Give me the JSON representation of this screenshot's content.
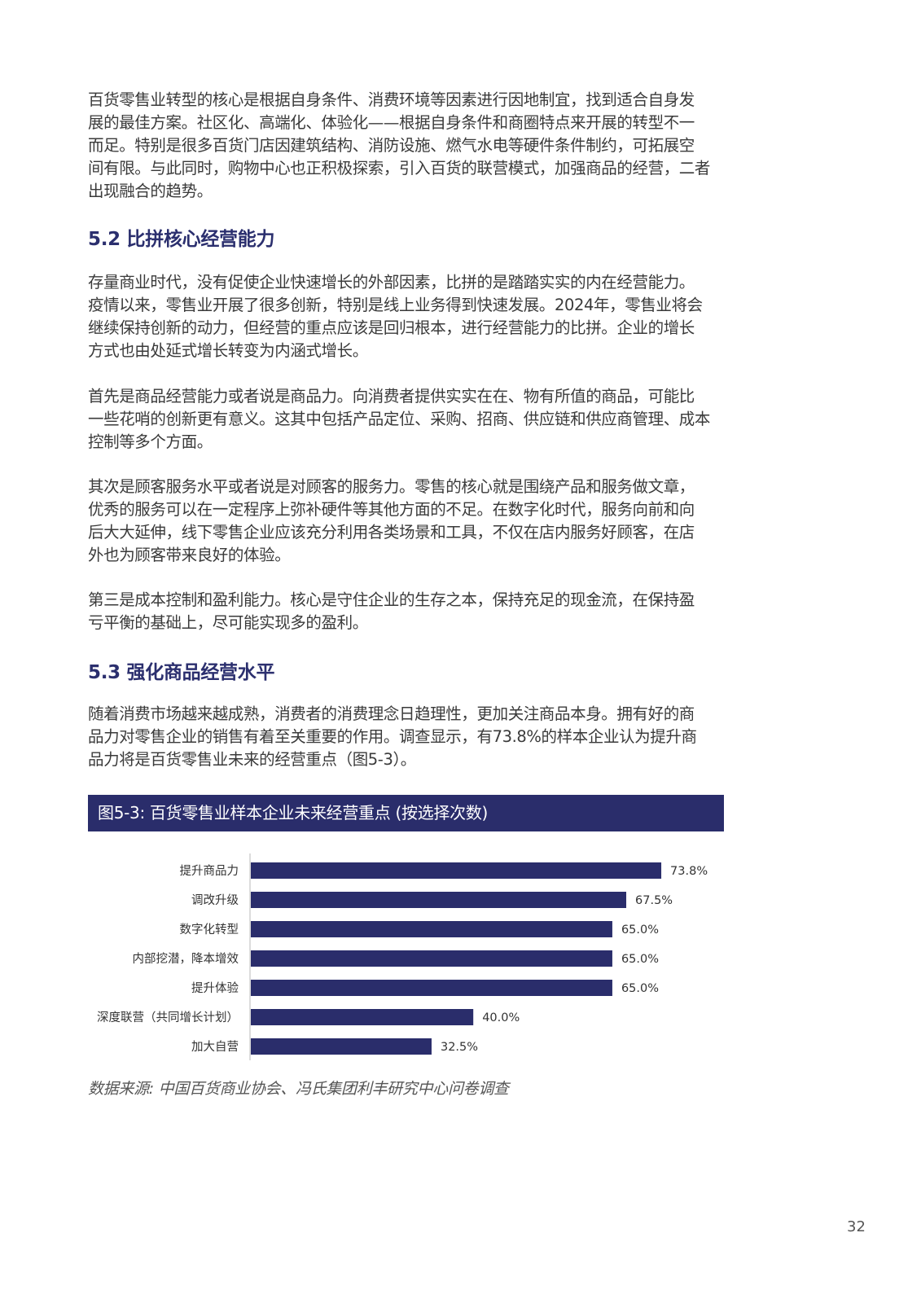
{
  "paragraphs": [
    [
      "百货零售业转型的核心是根据自身条件、消费环境等因素进行因地制宜，找到适合自身发",
      "展的最佳方案。社区化、高端化、体验化——根据自身条件和商圈特点来开展的转型不一",
      "而足。特别是很多百货门店因建筑结构、消防设施、燃气水电等硬件条件制约，可拓展空",
      "间有限。与此同时，购物中心也正积极探索，引入百货的联营模式，加强商品的经营，二者",
      "出现融合的趋势。"
    ],
    [
      "存量商业时代，没有促使企业快速增长的外部因素，比拼的是踏踏实实的内在经营能力。",
      "疫情以来，零售业开展了很多创新，特别是线上业务得到快速发展。2024年，零售业将会",
      "继续保持创新的动力，但经营的重点应该是回归根本，进行经营能力的比拼。企业的增长",
      "方式也由处延式增长转变为内涵式增长。"
    ],
    [
      "首先是商品经营能力或者说是商品力。向消费者提供实实在在、物有所值的商品，可能比",
      "一些花哨的创新更有意义。这其中包括产品定位、采购、招商、供应链和供应商管理、成本",
      "控制等多个方面。"
    ],
    [
      "其次是顾客服务水平或者说是对顾客的服务力。零售的核心就是围绕产品和服务做文章，",
      "优秀的服务可以在一定程序上弥补硬件等其他方面的不足。在数字化时代，服务向前和向",
      "后大大延伸，线下零售企业应该充分利用各类场景和工具，不仅在店内服务好顾客，在店",
      "外也为顾客带来良好的体验。"
    ],
    [
      "第三是成本控制和盈利能力。核心是守住企业的生存之本，保持充足的现金流，在保持盈",
      "亏平衡的基础上，尽可能实现多的盈利。"
    ],
    [
      "随着消费市场越来越成熟，消费者的消费理念日趋理性，更加关注商品本身。拥有好的商",
      "品力对零售企业的销售有着至关重要的作用。调查显示，有73.8%的样本企业认为提升商",
      "品力将是百货零售业未来的经营重点（图5-3）。"
    ]
  ],
  "headings": {
    "h52": "5.2 比拼核心经营能力",
    "h53": "5.3 强化商品经营水平"
  },
  "figure_title": "图5-3: 百货零售业样本企业未来经营重点 (按选择次数)",
  "chart_data": {
    "type": "bar",
    "orientation": "horizontal",
    "categories": [
      "提升商品力",
      "调改升级",
      "数字化转型",
      "内部挖潜，降本增效",
      "提升体验",
      "深度联营（共同增长计划）",
      "加大自营"
    ],
    "values": [
      73.8,
      67.5,
      65.0,
      65.0,
      65.0,
      40.0,
      32.5
    ],
    "value_labels": [
      "73.8%",
      "67.5%",
      "65.0%",
      "65.0%",
      "65.0%",
      "40.0%",
      "32.5%"
    ],
    "unit": "%",
    "xlim": [
      0,
      80
    ],
    "grid": false,
    "bar_color": "#2a2d6b"
  },
  "source": "数据来源: 中国百货商业协会、冯氏集团利丰研究中心问卷调查",
  "page_number": "32"
}
